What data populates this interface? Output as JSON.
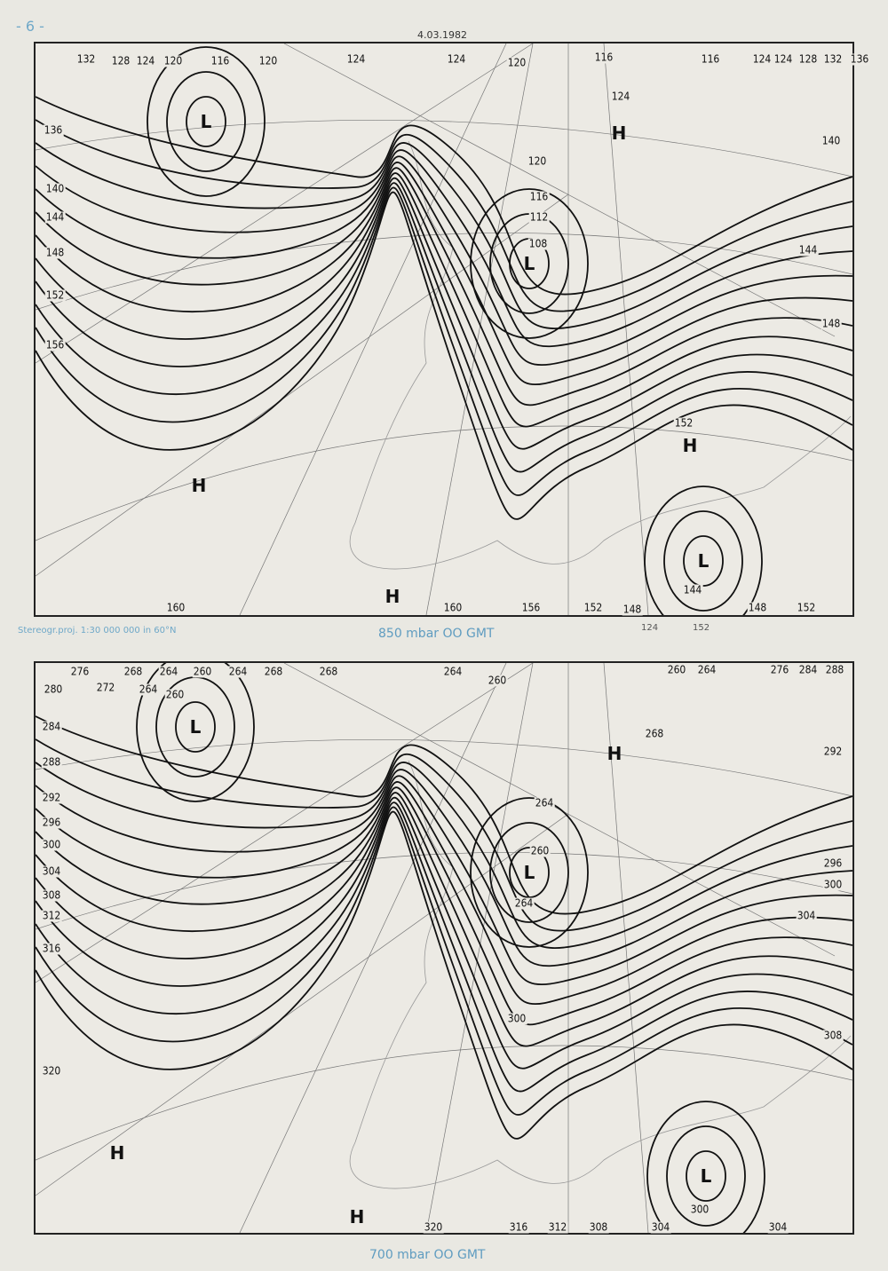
{
  "page_number": "- 6 -",
  "date": "4.03.1982",
  "projection_note": "Stereogr.proj. 1:30 000 000 in 60°N",
  "handwritten_notes": [
    "124",
    "152"
  ],
  "maps": [
    {
      "caption": "850 mbar  OO GMT",
      "top_labels": [
        "132",
        "128",
        "124",
        "120",
        "116",
        "120",
        "124",
        "124",
        "120",
        "116",
        "124",
        "116",
        "124",
        "128",
        "132",
        "136"
      ],
      "left_labels": [
        "136",
        "140",
        "144",
        "148",
        "152",
        "156"
      ],
      "right_labels": [
        "140",
        "144",
        "148"
      ],
      "bottom_labels": [
        "160",
        "160",
        "156",
        "152",
        "148",
        "148",
        "152"
      ],
      "inner_labels": [
        "124",
        "120",
        "116",
        "112",
        "108",
        "152",
        "144"
      ],
      "centers": [
        "L",
        "H",
        "L",
        "H",
        "H",
        "H",
        "L"
      ]
    },
    {
      "caption": "700 mbar  OO GMT",
      "top_labels": [
        "276",
        "268",
        "264",
        "260",
        "264",
        "268",
        "268",
        "264",
        "260",
        "260",
        "264",
        "276",
        "284",
        "288"
      ],
      "left_labels": [
        "280",
        "284",
        "288",
        "292",
        "296",
        "300",
        "304",
        "308",
        "312",
        "316",
        "320"
      ],
      "right_labels": [
        "292",
        "296",
        "300",
        "304",
        "308"
      ],
      "bottom_labels": [
        "320",
        "316",
        "312",
        "308",
        "304",
        "304",
        "300"
      ],
      "inner_labels": [
        "272",
        "264",
        "260",
        "268",
        "264",
        "260",
        "264",
        "300"
      ],
      "centers": [
        "L",
        "H",
        "L",
        "H",
        "H",
        "L"
      ]
    }
  ]
}
